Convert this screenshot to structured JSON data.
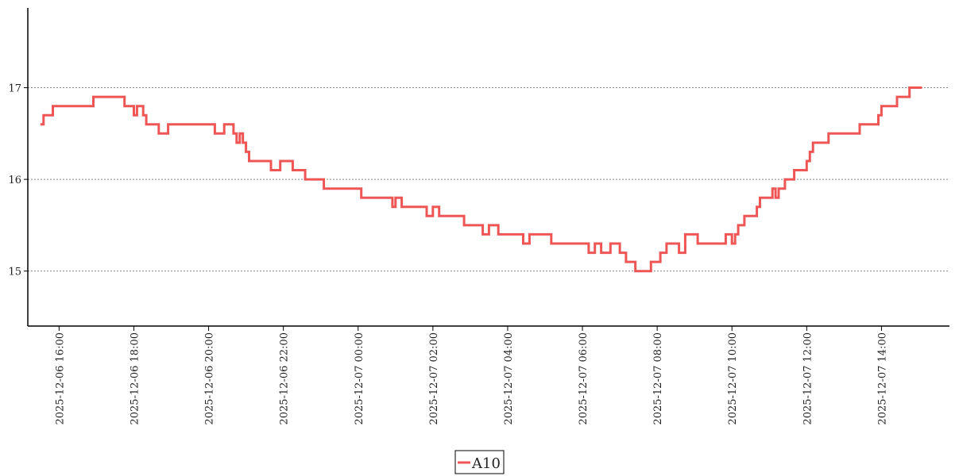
{
  "chart_data": {
    "type": "line",
    "title": "",
    "xlabel": "",
    "ylabel": "",
    "ylim": [
      14.4,
      17.87
    ],
    "xlim": [
      "2025-12-06 15:20",
      "2025-12-07 15:30"
    ],
    "y_ticks": [
      15,
      16,
      17
    ],
    "x_ticks": [
      "2025-12-06 16:00",
      "2025-12-06 18:00",
      "2025-12-06 20:00",
      "2025-12-06 22:00",
      "2025-12-07 00:00",
      "2025-12-07 02:00",
      "2025-12-07 04:00",
      "2025-12-07 06:00",
      "2025-12-07 08:00",
      "2025-12-07 10:00",
      "2025-12-07 12:00",
      "2025-12-07 14:00"
    ],
    "grid": "horizontal dotted",
    "legend": "bottom-center",
    "line_style": "steps-post",
    "series": [
      {
        "name": "A10",
        "color": "#ee5555",
        "x": [
          "2025-12-06 15:30",
          "2025-12-06 15:35",
          "2025-12-06 15:45",
          "2025-12-06 15:50",
          "2025-12-06 16:30",
          "2025-12-06 16:55",
          "2025-12-06 17:00",
          "2025-12-06 17:25",
          "2025-12-06 17:45",
          "2025-12-06 17:55",
          "2025-12-06 18:00",
          "2025-12-06 18:05",
          "2025-12-06 18:15",
          "2025-12-06 18:20",
          "2025-12-06 18:40",
          "2025-12-06 18:55",
          "2025-12-06 19:15",
          "2025-12-06 19:20",
          "2025-12-06 20:10",
          "2025-12-06 20:25",
          "2025-12-06 20:40",
          "2025-12-06 20:45",
          "2025-12-06 20:50",
          "2025-12-06 20:55",
          "2025-12-06 21:00",
          "2025-12-06 21:05",
          "2025-12-06 21:10",
          "2025-12-06 21:40",
          "2025-12-06 21:55",
          "2025-12-06 22:00",
          "2025-12-06 22:15",
          "2025-12-06 22:35",
          "2025-12-06 23:05",
          "2025-12-06 23:30",
          "2025-12-07 00:00",
          "2025-12-07 00:05",
          "2025-12-07 00:15",
          "2025-12-07 00:55",
          "2025-12-07 01:00",
          "2025-12-07 01:10",
          "2025-12-07 01:50",
          "2025-12-07 02:00",
          "2025-12-07 02:10",
          "2025-12-07 02:50",
          "2025-12-07 03:20",
          "2025-12-07 03:30",
          "2025-12-07 03:45",
          "2025-12-07 04:25",
          "2025-12-07 04:35",
          "2025-12-07 05:10",
          "2025-12-07 05:15",
          "2025-12-07 05:30",
          "2025-12-07 06:10",
          "2025-12-07 06:20",
          "2025-12-07 06:30",
          "2025-12-07 06:45",
          "2025-12-07 07:00",
          "2025-12-07 07:10",
          "2025-12-07 07:25",
          "2025-12-07 07:50",
          "2025-12-07 08:05",
          "2025-12-07 08:15",
          "2025-12-07 08:35",
          "2025-12-07 08:45",
          "2025-12-07 09:05",
          "2025-12-07 09:10",
          "2025-12-07 09:45",
          "2025-12-07 09:50",
          "2025-12-07 10:00",
          "2025-12-07 10:05",
          "2025-12-07 10:10",
          "2025-12-07 10:20",
          "2025-12-07 10:40",
          "2025-12-07 10:45",
          "2025-12-07 11:05",
          "2025-12-07 11:10",
          "2025-12-07 11:15",
          "2025-12-07 11:25",
          "2025-12-07 11:40",
          "2025-12-07 12:00",
          "2025-12-07 12:05",
          "2025-12-07 12:10",
          "2025-12-07 12:15",
          "2025-12-07 12:35",
          "2025-12-07 13:25",
          "2025-12-07 13:55",
          "2025-12-07 14:00",
          "2025-12-07 14:15",
          "2025-12-07 14:25",
          "2025-12-07 14:45",
          "2025-12-07 15:05"
        ],
        "values": [
          16.6,
          16.7,
          16.7,
          16.8,
          16.8,
          16.9,
          16.9,
          16.9,
          16.8,
          16.8,
          16.7,
          16.8,
          16.7,
          16.6,
          16.5,
          16.6,
          16.6,
          16.6,
          16.5,
          16.6,
          16.5,
          16.4,
          16.5,
          16.4,
          16.3,
          16.2,
          16.2,
          16.1,
          16.2,
          16.2,
          16.1,
          16.0,
          15.9,
          15.9,
          15.9,
          15.8,
          15.8,
          15.7,
          15.8,
          15.7,
          15.6,
          15.7,
          15.6,
          15.5,
          15.4,
          15.5,
          15.4,
          15.3,
          15.4,
          15.3,
          15.3,
          15.3,
          15.2,
          15.3,
          15.2,
          15.3,
          15.2,
          15.1,
          15.0,
          15.1,
          15.2,
          15.3,
          15.2,
          15.4,
          15.3,
          15.3,
          15.3,
          15.4,
          15.3,
          15.4,
          15.5,
          15.6,
          15.7,
          15.8,
          15.9,
          15.8,
          15.9,
          16.0,
          16.1,
          16.2,
          16.3,
          16.4,
          16.4,
          16.5,
          16.6,
          16.7,
          16.8,
          16.8,
          16.9,
          17.0,
          17.0
        ]
      }
    ]
  }
}
